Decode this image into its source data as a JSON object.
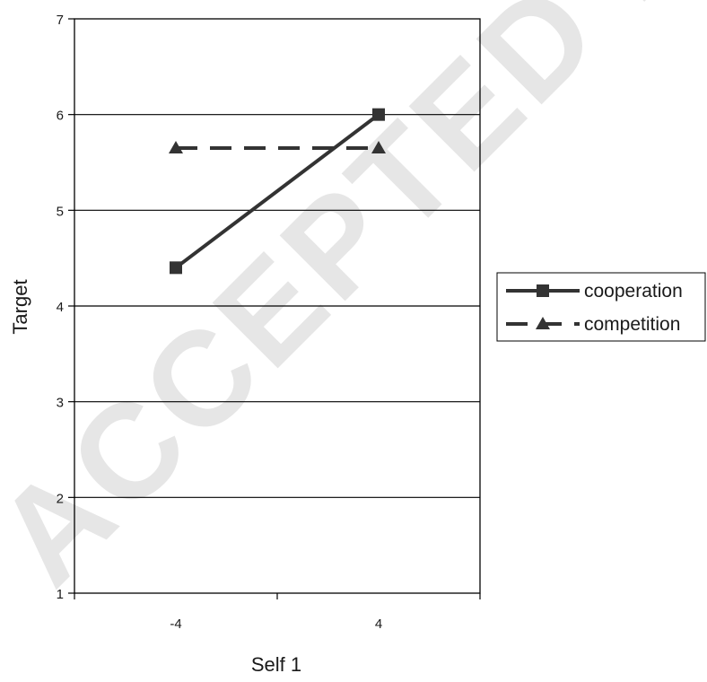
{
  "watermark": "ACCEPTED MANUSCRIPT",
  "chart_data": {
    "type": "line",
    "xlabel": "Self 1",
    "ylabel": "Target",
    "categories": [
      "-4",
      "4"
    ],
    "ylim": [
      1,
      7
    ],
    "yticks": [
      1,
      2,
      3,
      4,
      5,
      6,
      7
    ],
    "grid": true,
    "legend_position": "right",
    "series": [
      {
        "name": "cooperation",
        "values": [
          4.4,
          6.0
        ],
        "marker": "square",
        "dash": "solid",
        "color": "#333333"
      },
      {
        "name": "competition",
        "values": [
          5.65,
          5.65
        ],
        "marker": "triangle",
        "dash": "dashed",
        "color": "#333333"
      }
    ]
  }
}
